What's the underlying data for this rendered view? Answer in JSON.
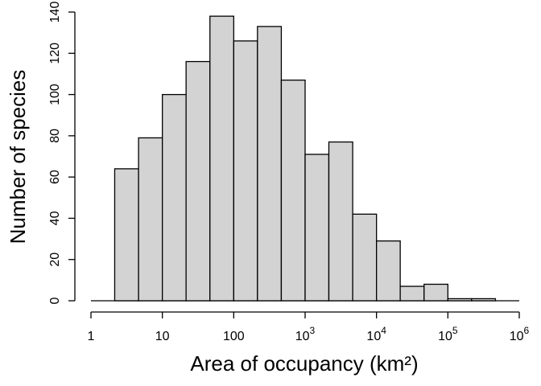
{
  "chart_data": {
    "type": "bar",
    "title": "",
    "xlabel": "Area of occupancy (km²)",
    "ylabel": "Number of species",
    "x_scale": "log10",
    "xlim": [
      1,
      1000000
    ],
    "ylim": [
      0,
      140
    ],
    "grid": false,
    "bin_edges": [
      2.15,
      4.64,
      10,
      21.5,
      46.4,
      100,
      215,
      464,
      1000,
      2150,
      4640,
      10000,
      21500,
      46400,
      100000,
      215000,
      464000
    ],
    "values": [
      64,
      79,
      100,
      116,
      138,
      126,
      133,
      107,
      71,
      77,
      42,
      29,
      7,
      8,
      1,
      1
    ],
    "x_ticks": [
      {
        "value": 1,
        "base": "1",
        "exp": ""
      },
      {
        "value": 10,
        "base": "10",
        "exp": ""
      },
      {
        "value": 100,
        "base": "100",
        "exp": ""
      },
      {
        "value": 1000,
        "base": "10",
        "exp": "3"
      },
      {
        "value": 10000,
        "base": "10",
        "exp": "4"
      },
      {
        "value": 100000,
        "base": "10",
        "exp": "5"
      },
      {
        "value": 1000000,
        "base": "10",
        "exp": "6"
      }
    ],
    "y_ticks": [
      0,
      20,
      40,
      60,
      80,
      100,
      120,
      140
    ]
  }
}
